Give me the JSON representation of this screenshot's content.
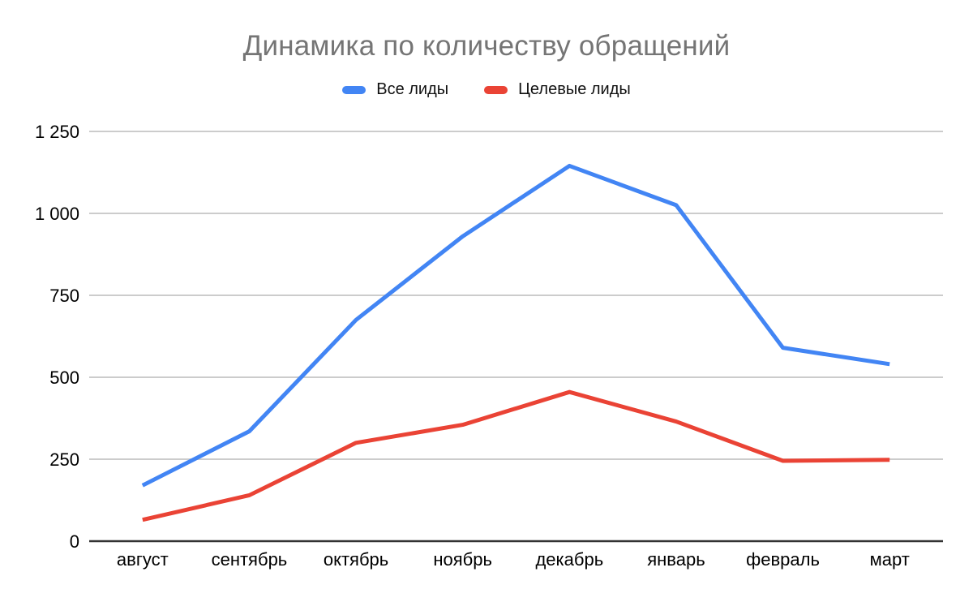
{
  "chart": {
    "title": "Динамика по количеству обращений"
  },
  "chart_data": {
    "type": "line",
    "title": "Динамика по количеству обращений",
    "xlabel": "",
    "ylabel": "",
    "categories": [
      "август",
      "сентябрь",
      "октябрь",
      "ноябрь",
      "декабрь",
      "январь",
      "февраль",
      "март"
    ],
    "series": [
      {
        "name": "Все лиды",
        "color": "#4285F4",
        "values": [
          170,
          335,
          675,
          930,
          1145,
          1025,
          590,
          540
        ]
      },
      {
        "name": "Целевые лиды",
        "color": "#EA4335",
        "values": [
          65,
          140,
          300,
          355,
          455,
          365,
          245,
          248
        ]
      }
    ],
    "ylim": [
      0,
      1250
    ],
    "yticks": [
      0,
      250,
      500,
      750,
      1000,
      1250
    ],
    "ytick_labels": [
      "0",
      "250",
      "500",
      "750",
      "1 000",
      "1 250"
    ],
    "grid": true,
    "legend_position": "top",
    "colors": {
      "title": "#757575",
      "tick_label": "#000000",
      "gridline": "#cccccc",
      "zero_axis": "#333333",
      "background": "#ffffff"
    }
  }
}
